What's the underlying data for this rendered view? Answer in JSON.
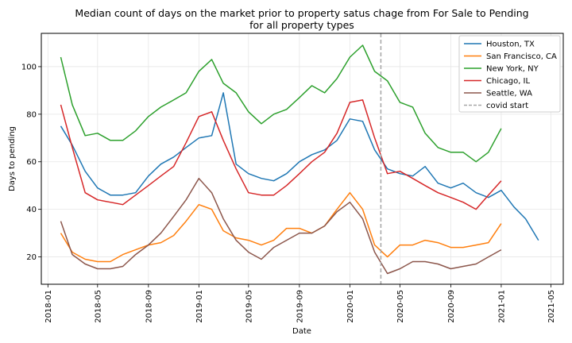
{
  "chart_data": {
    "type": "line",
    "title_line1": "Median count of days on the market prior to property satus chage from For Sale to Pending",
    "title_line2": "for all property types",
    "xlabel": "Date",
    "ylabel": "Days to pending",
    "grid": true,
    "legend_position": "upper-right",
    "xlim": [
      "2017-12-16",
      "2021-05-31"
    ],
    "ylim": [
      8.5,
      114
    ],
    "x_ticks": [
      {
        "date": "2018-01-01",
        "label": "2018-01"
      },
      {
        "date": "2018-05-01",
        "label": "2018-05"
      },
      {
        "date": "2018-09-01",
        "label": "2018-09"
      },
      {
        "date": "2019-01-01",
        "label": "2019-01"
      },
      {
        "date": "2019-05-01",
        "label": "2019-05"
      },
      {
        "date": "2019-09-01",
        "label": "2019-09"
      },
      {
        "date": "2020-01-01",
        "label": "2020-01"
      },
      {
        "date": "2020-05-01",
        "label": "2020-05"
      },
      {
        "date": "2020-09-01",
        "label": "2020-09"
      },
      {
        "date": "2021-01-01",
        "label": "2021-01"
      },
      {
        "date": "2021-05-01",
        "label": "2021-05"
      }
    ],
    "y_ticks": [
      20,
      40,
      60,
      80,
      100
    ],
    "x": [
      "2018-02-01",
      "2018-03-01",
      "2018-04-01",
      "2018-05-01",
      "2018-06-01",
      "2018-07-01",
      "2018-08-01",
      "2018-09-01",
      "2018-10-01",
      "2018-11-01",
      "2018-12-01",
      "2019-01-01",
      "2019-02-01",
      "2019-03-01",
      "2019-04-01",
      "2019-05-01",
      "2019-06-01",
      "2019-07-01",
      "2019-08-01",
      "2019-09-01",
      "2019-10-01",
      "2019-11-01",
      "2019-12-01",
      "2020-01-01",
      "2020-02-01",
      "2020-03-01",
      "2020-04-01",
      "2020-05-01",
      "2020-06-01",
      "2020-07-01",
      "2020-08-01",
      "2020-09-01",
      "2020-10-01",
      "2020-11-01",
      "2020-12-01",
      "2021-01-01",
      "2021-02-01",
      "2021-03-01",
      "2021-04-01"
    ],
    "series": [
      {
        "name": "Houston, TX",
        "color": "#1f77b4",
        "values": [
          75,
          67,
          56,
          49,
          46,
          46,
          47,
          54,
          59,
          62,
          66,
          70,
          71,
          89,
          59,
          55,
          53,
          52,
          55,
          60,
          63,
          65,
          69,
          78,
          77,
          65,
          57,
          55,
          54,
          58,
          51,
          49,
          51,
          47,
          45,
          48,
          41,
          36,
          27
        ]
      },
      {
        "name": "San Francisco, CA",
        "color": "#ff7f0e",
        "values": [
          30,
          22,
          19,
          18,
          18,
          21,
          23,
          25,
          26,
          29,
          35,
          42,
          40,
          31,
          28,
          27,
          25,
          27,
          32,
          32,
          30,
          33,
          40,
          47,
          40,
          25,
          20,
          25,
          25,
          27,
          26,
          24,
          24,
          25,
          26,
          34,
          null,
          null,
          null
        ]
      },
      {
        "name": "New York, NY",
        "color": "#2ca02c",
        "values": [
          104,
          84,
          71,
          72,
          69,
          69,
          73,
          79,
          83,
          86,
          89,
          98,
          103,
          93,
          89,
          81,
          76,
          80,
          82,
          87,
          92,
          89,
          95,
          104,
          109,
          98,
          94,
          85,
          83,
          72,
          66,
          64,
          64,
          60,
          64,
          74,
          null,
          null,
          null
        ]
      },
      {
        "name": "Chicago, IL",
        "color": "#d62728",
        "values": [
          84,
          66,
          47,
          44,
          43,
          42,
          46,
          50,
          54,
          58,
          68,
          79,
          81,
          69,
          57,
          47,
          46,
          46,
          50,
          55,
          60,
          64,
          72,
          85,
          86,
          70,
          55,
          56,
          53,
          50,
          47,
          45,
          43,
          40,
          46,
          52,
          null,
          null,
          null
        ]
      },
      {
        "name": "Seattle, WA",
        "color": "#8c564b",
        "values": [
          35,
          21,
          17,
          15,
          15,
          16,
          21,
          25,
          30,
          37,
          44,
          53,
          47,
          36,
          27,
          22,
          19,
          24,
          27,
          30,
          30,
          33,
          39,
          43,
          36,
          22,
          13,
          15,
          18,
          18,
          17,
          15,
          16,
          17,
          20,
          23,
          null,
          null,
          null
        ]
      }
    ],
    "covid_line": {
      "label": "covid start",
      "date": "2020-03-16",
      "color": "#a6a6a6"
    }
  }
}
